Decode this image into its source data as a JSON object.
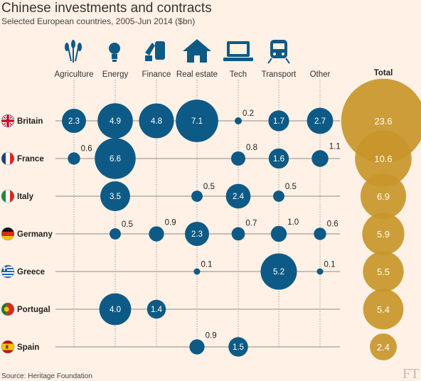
{
  "chart_data": {
    "type": "bubble-matrix",
    "title": "Chinese investments and contracts",
    "subtitle": "Selected European countries, 2005-Jun 2014 ($bn)",
    "categories": [
      "Agriculture",
      "Energy",
      "Finance",
      "Real estate",
      "Tech",
      "Transport",
      "Other"
    ],
    "category_icons": [
      "wheat-icon",
      "lightbulb-icon",
      "coins-icon",
      "house-icon",
      "laptop-icon",
      "train-icon",
      "none"
    ],
    "total_label": "Total",
    "countries": [
      {
        "name": "Britain",
        "flag": "uk-flag-icon",
        "values": [
          2.3,
          4.9,
          4.8,
          7.1,
          0.2,
          1.7,
          2.7
        ],
        "total": 23.6
      },
      {
        "name": "France",
        "flag": "france-flag-icon",
        "values": [
          0.6,
          6.6,
          null,
          null,
          0.8,
          1.6,
          1.1
        ],
        "total": 10.6
      },
      {
        "name": "Italy",
        "flag": "italy-flag-icon",
        "values": [
          null,
          3.5,
          null,
          0.5,
          2.4,
          0.5,
          null
        ],
        "total": 6.9
      },
      {
        "name": "Germany",
        "flag": "germany-flag-icon",
        "values": [
          null,
          0.5,
          0.9,
          2.3,
          0.7,
          1.0,
          0.6
        ],
        "total": 5.9
      },
      {
        "name": "Greece",
        "flag": "greece-flag-icon",
        "values": [
          null,
          null,
          null,
          0.1,
          null,
          5.2,
          0.1
        ],
        "total": 5.5
      },
      {
        "name": "Portugal",
        "flag": "portugal-flag-icon",
        "values": [
          null,
          4.0,
          1.4,
          null,
          null,
          null,
          null
        ],
        "total": 5.4
      },
      {
        "name": "Spain",
        "flag": "spain-flag-icon",
        "values": [
          null,
          null,
          null,
          0.9,
          1.5,
          null,
          null
        ],
        "total": 2.4
      }
    ],
    "unit": "$bn",
    "colors": {
      "background": "#fff1e5",
      "category_bubble": "#0e5a86",
      "total_bubble": "#c8962a",
      "grid_line": "#8a8a8a"
    }
  },
  "source": "Source: Heritage Foundation",
  "branding": "FT"
}
